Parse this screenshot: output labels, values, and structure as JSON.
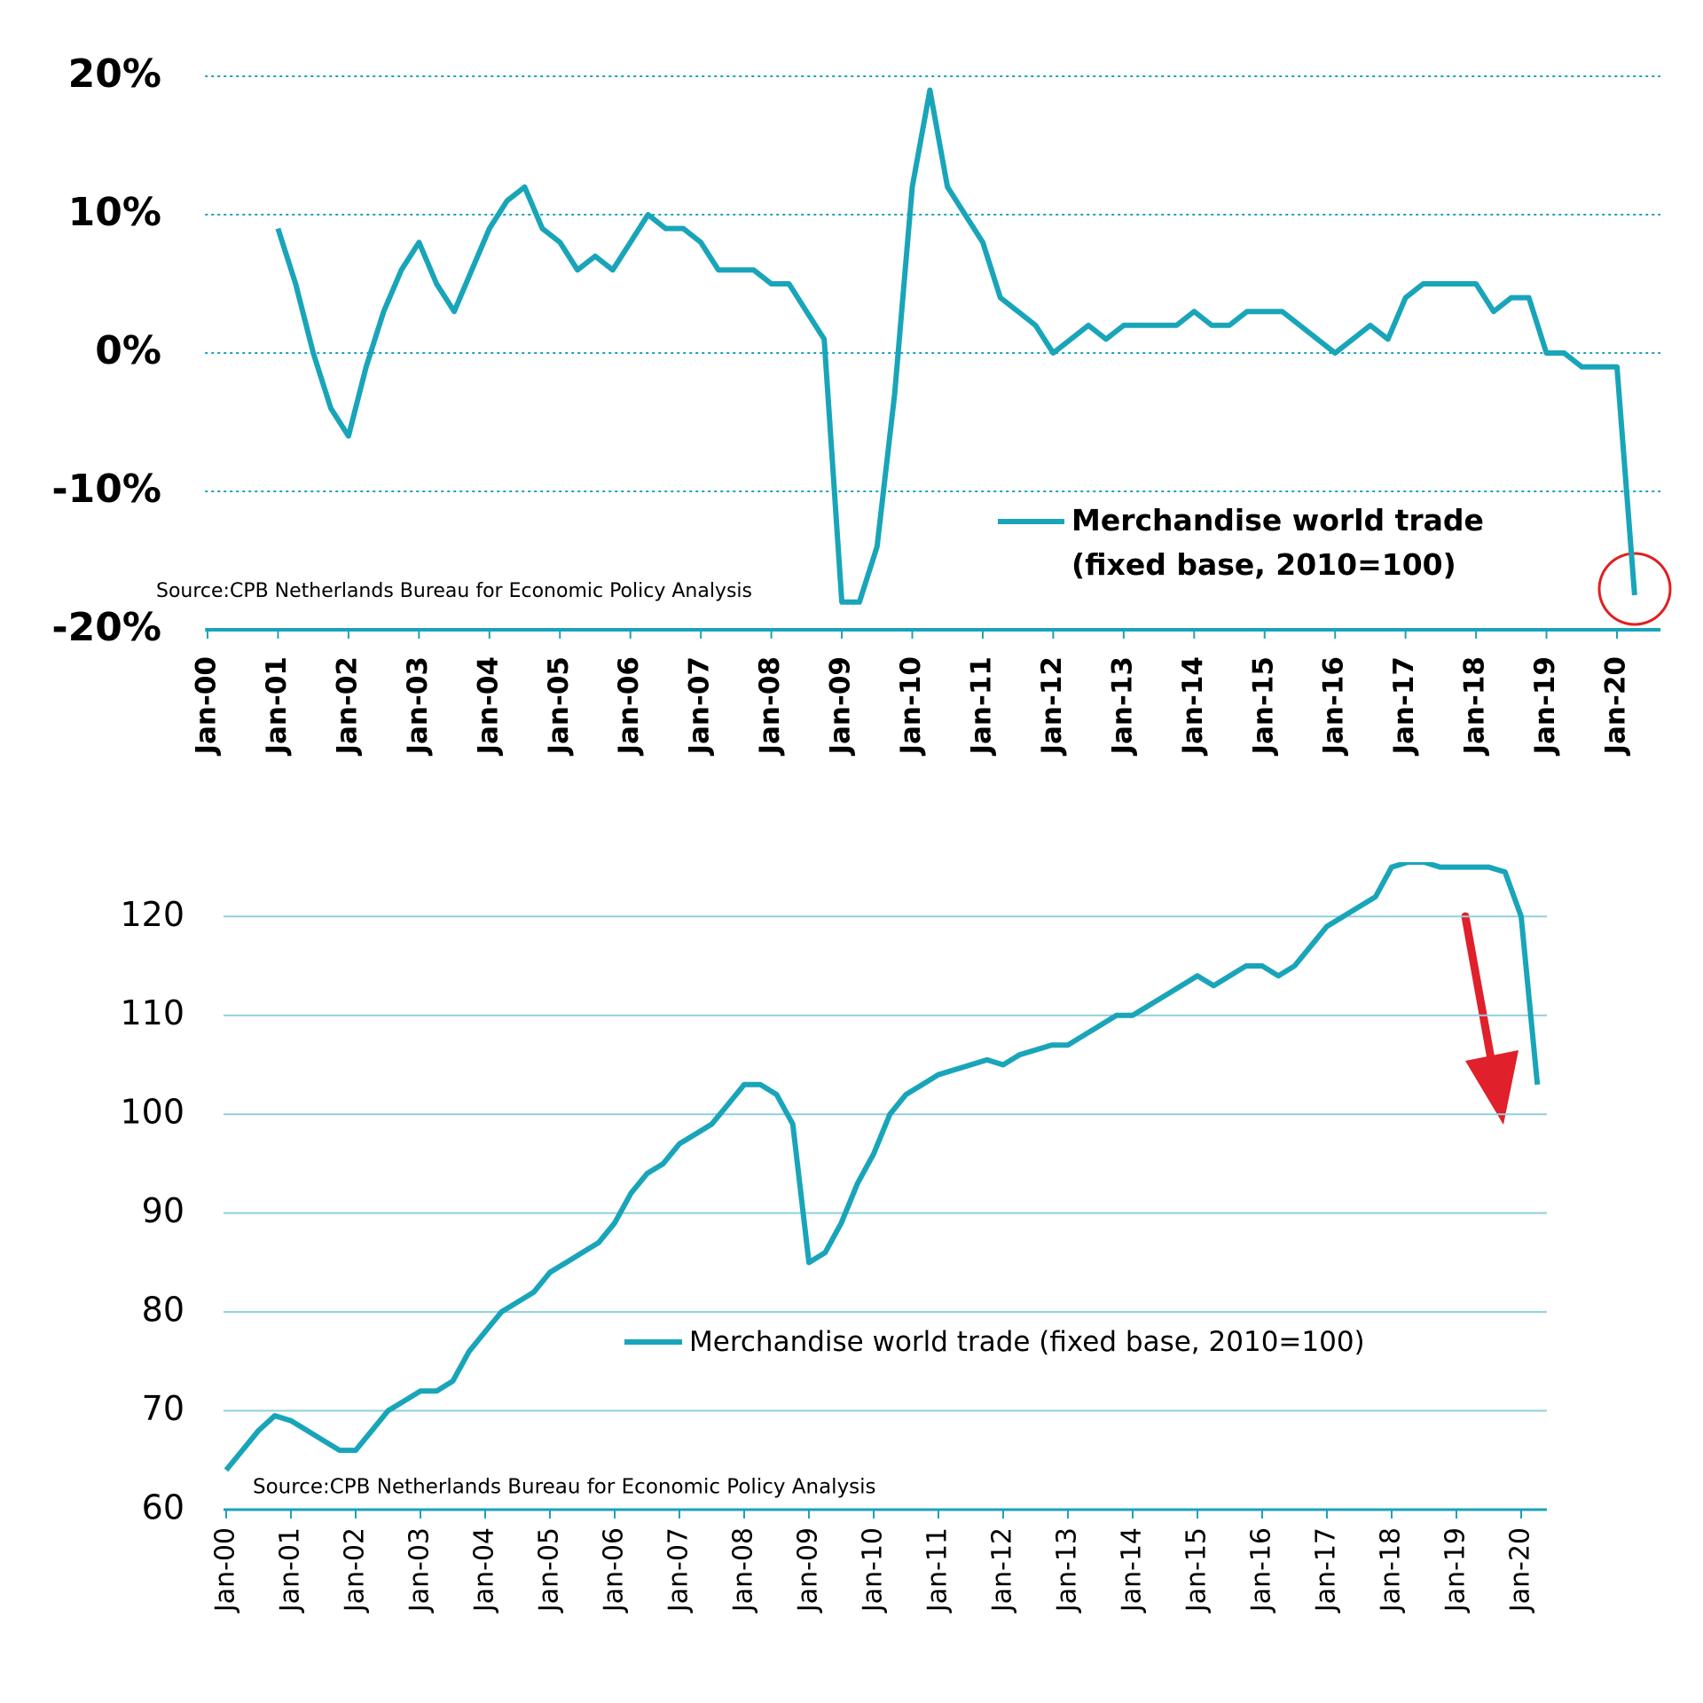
{
  "chart_data": [
    {
      "type": "line",
      "categories": [
        "Jan-00",
        null,
        null,
        null,
        "Jan-01",
        null,
        null,
        null,
        "Jan-02",
        null,
        null,
        null,
        "Jan-03",
        null,
        null,
        null,
        "Jan-04",
        null,
        null,
        null,
        "Jan-05",
        null,
        null,
        null,
        "Jan-06",
        null,
        null,
        null,
        "Jan-07",
        null,
        null,
        null,
        "Jan-08",
        null,
        null,
        null,
        "Jan-09",
        null,
        null,
        null,
        "Jan-10",
        null,
        null,
        null,
        "Jan-11",
        null,
        null,
        null,
        "Jan-12",
        null,
        null,
        null,
        "Jan-13",
        null,
        null,
        null,
        "Jan-14",
        null,
        null,
        null,
        "Jan-15",
        null,
        null,
        null,
        "Jan-16",
        null,
        null,
        null,
        "Jan-17",
        null,
        null,
        null,
        "Jan-18",
        null,
        null,
        null,
        "Jan-19",
        null,
        null,
        null,
        "Jan-20",
        null
      ],
      "series": [
        {
          "name": "Merchandise world trade (fixed base, 2010=100)",
          "color": "#19a5b9",
          "values": [
            null,
            null,
            null,
            null,
            9,
            5,
            0,
            -4,
            -6,
            -1,
            3,
            6,
            8,
            5,
            3,
            6,
            9,
            11,
            12,
            9,
            8,
            6,
            7,
            6,
            8,
            10,
            9,
            9,
            8,
            6,
            6,
            6,
            5,
            5,
            3,
            1,
            -18,
            -18,
            -14,
            -3,
            12,
            19,
            12,
            10,
            8,
            4,
            3,
            2,
            0,
            1,
            2,
            1,
            2,
            2,
            2,
            2,
            3,
            2,
            2,
            3,
            3,
            3,
            2,
            1,
            0,
            1,
            2,
            1,
            4,
            5,
            5,
            5,
            5,
            3,
            4,
            4,
            0,
            0,
            -1,
            -1,
            -1,
            -17.5
          ]
        }
      ],
      "ylim": [
        -20,
        20
      ],
      "yticks": [
        {
          "value": -20,
          "label": "-20%"
        },
        {
          "value": -10,
          "label": "-10%"
        },
        {
          "value": 0,
          "label": "0%"
        },
        {
          "value": 10,
          "label": "10%"
        },
        {
          "value": 20,
          "label": "20%"
        }
      ],
      "grid": true,
      "source": "Source:CPB Netherlands Bureau for Economic Policy Analysis"
    },
    {
      "type": "line",
      "categories": [
        "Jan-00",
        null,
        null,
        null,
        "Jan-01",
        null,
        null,
        null,
        "Jan-02",
        null,
        null,
        null,
        "Jan-03",
        null,
        null,
        null,
        "Jan-04",
        null,
        null,
        null,
        "Jan-05",
        null,
        null,
        null,
        "Jan-06",
        null,
        null,
        null,
        "Jan-07",
        null,
        null,
        null,
        "Jan-08",
        null,
        null,
        null,
        "Jan-09",
        null,
        null,
        null,
        "Jan-10",
        null,
        null,
        null,
        "Jan-11",
        null,
        null,
        null,
        "Jan-12",
        null,
        null,
        null,
        "Jan-13",
        null,
        null,
        null,
        "Jan-14",
        null,
        null,
        null,
        "Jan-15",
        null,
        null,
        null,
        "Jan-16",
        null,
        null,
        null,
        "Jan-17",
        null,
        null,
        null,
        "Jan-18",
        null,
        null,
        null,
        "Jan-19",
        null,
        null,
        null,
        "Jan-20",
        null
      ],
      "series": [
        {
          "name": "Merchandise world trade (fixed base, 2010=100)",
          "color": "#19a5b9",
          "values": [
            64,
            66,
            68,
            69.5,
            69,
            68,
            67,
            66,
            66,
            68,
            70,
            71,
            72,
            72,
            73,
            76,
            78,
            80,
            81,
            82,
            84,
            85,
            86,
            87,
            89,
            92,
            94,
            95,
            97,
            98,
            99,
            101,
            103,
            103,
            102,
            99,
            85,
            86,
            89,
            93,
            96,
            100,
            102,
            103,
            104,
            104.5,
            105,
            105.5,
            105,
            106,
            106.5,
            107,
            107,
            108,
            109,
            110,
            110,
            111,
            112,
            113,
            114,
            113,
            114,
            115,
            115,
            114,
            115,
            117,
            119,
            120,
            121,
            122,
            125,
            125.5,
            125.5,
            125,
            125,
            125,
            125,
            124.5,
            120,
            103
          ]
        }
      ],
      "ylim": [
        60,
        125.5
      ],
      "yticks": [
        60,
        70,
        80,
        90,
        100,
        110,
        120
      ],
      "grid": true,
      "source": "Source:CPB Netherlands Bureau for Economic Policy Analysis"
    }
  ]
}
